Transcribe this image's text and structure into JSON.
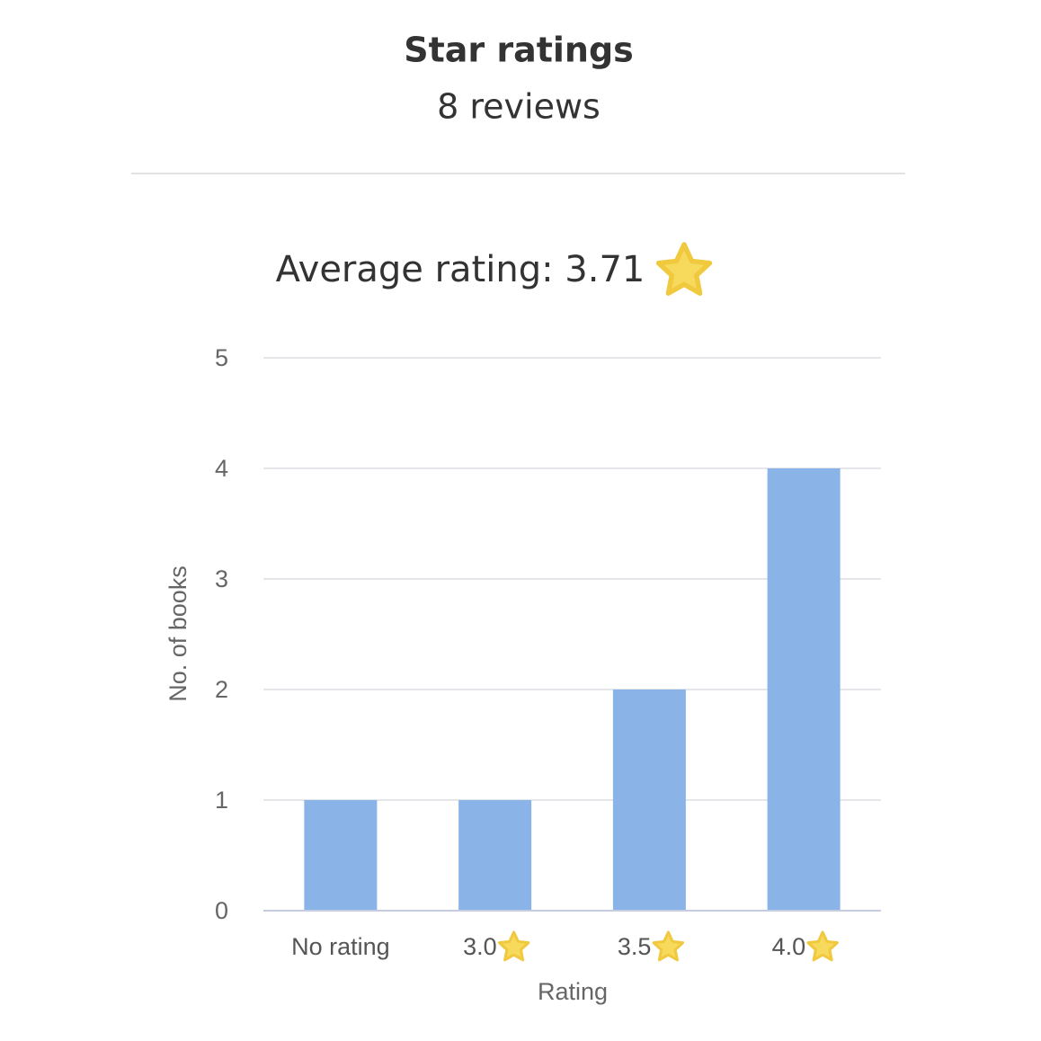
{
  "chart_data": {
    "type": "bar",
    "title": "Star ratings",
    "subtitle": "8 reviews",
    "annotation": "Average rating: 3.71",
    "categories": [
      "No rating",
      "3.0",
      "3.5",
      "4.0"
    ],
    "values": [
      1,
      1,
      2,
      4
    ],
    "color": "#8ab4e8",
    "x_label": "Rating",
    "y_label": "No. of books",
    "ylim": [
      0,
      5
    ],
    "yticks": [
      0,
      1,
      2,
      3,
      4,
      5
    ],
    "grid": true
  }
}
